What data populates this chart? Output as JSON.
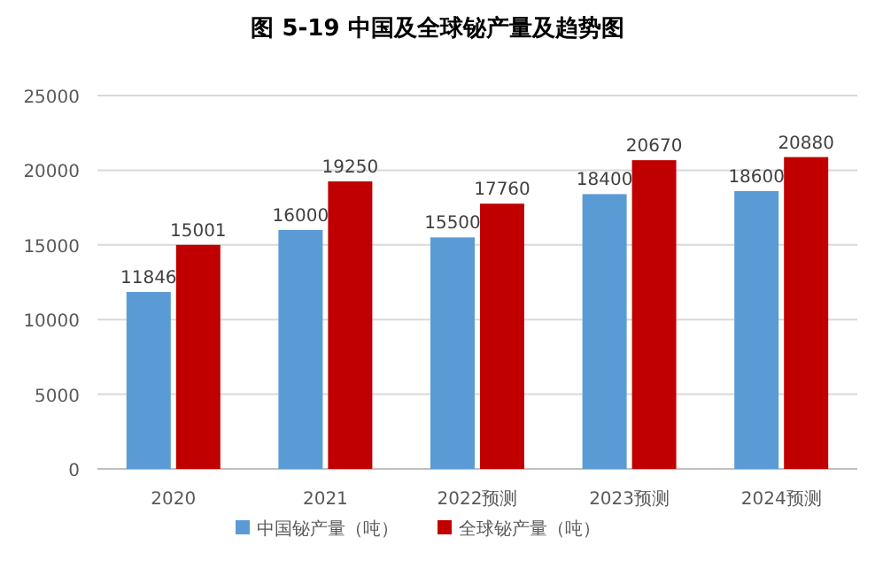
{
  "chart_data": {
    "type": "bar",
    "title": "图 5-19 中国及全球铋产量及趋势图",
    "categories": [
      "2020",
      "2021",
      "2022预测",
      "2023预测",
      "2024预测"
    ],
    "series": [
      {
        "name": "中国铋产量（吨）",
        "color": "#5b9bd5",
        "values": [
          11846,
          16000,
          15500,
          18400,
          18600
        ]
      },
      {
        "name": "全球铋产量（吨）",
        "color": "#c00000",
        "values": [
          15001,
          19250,
          17760,
          20670,
          20880
        ]
      }
    ],
    "ylim": [
      0,
      25000
    ],
    "yticks": [
      0,
      5000,
      10000,
      15000,
      20000,
      25000
    ],
    "grid": "y",
    "legend": "bottom",
    "data_labels": true
  }
}
